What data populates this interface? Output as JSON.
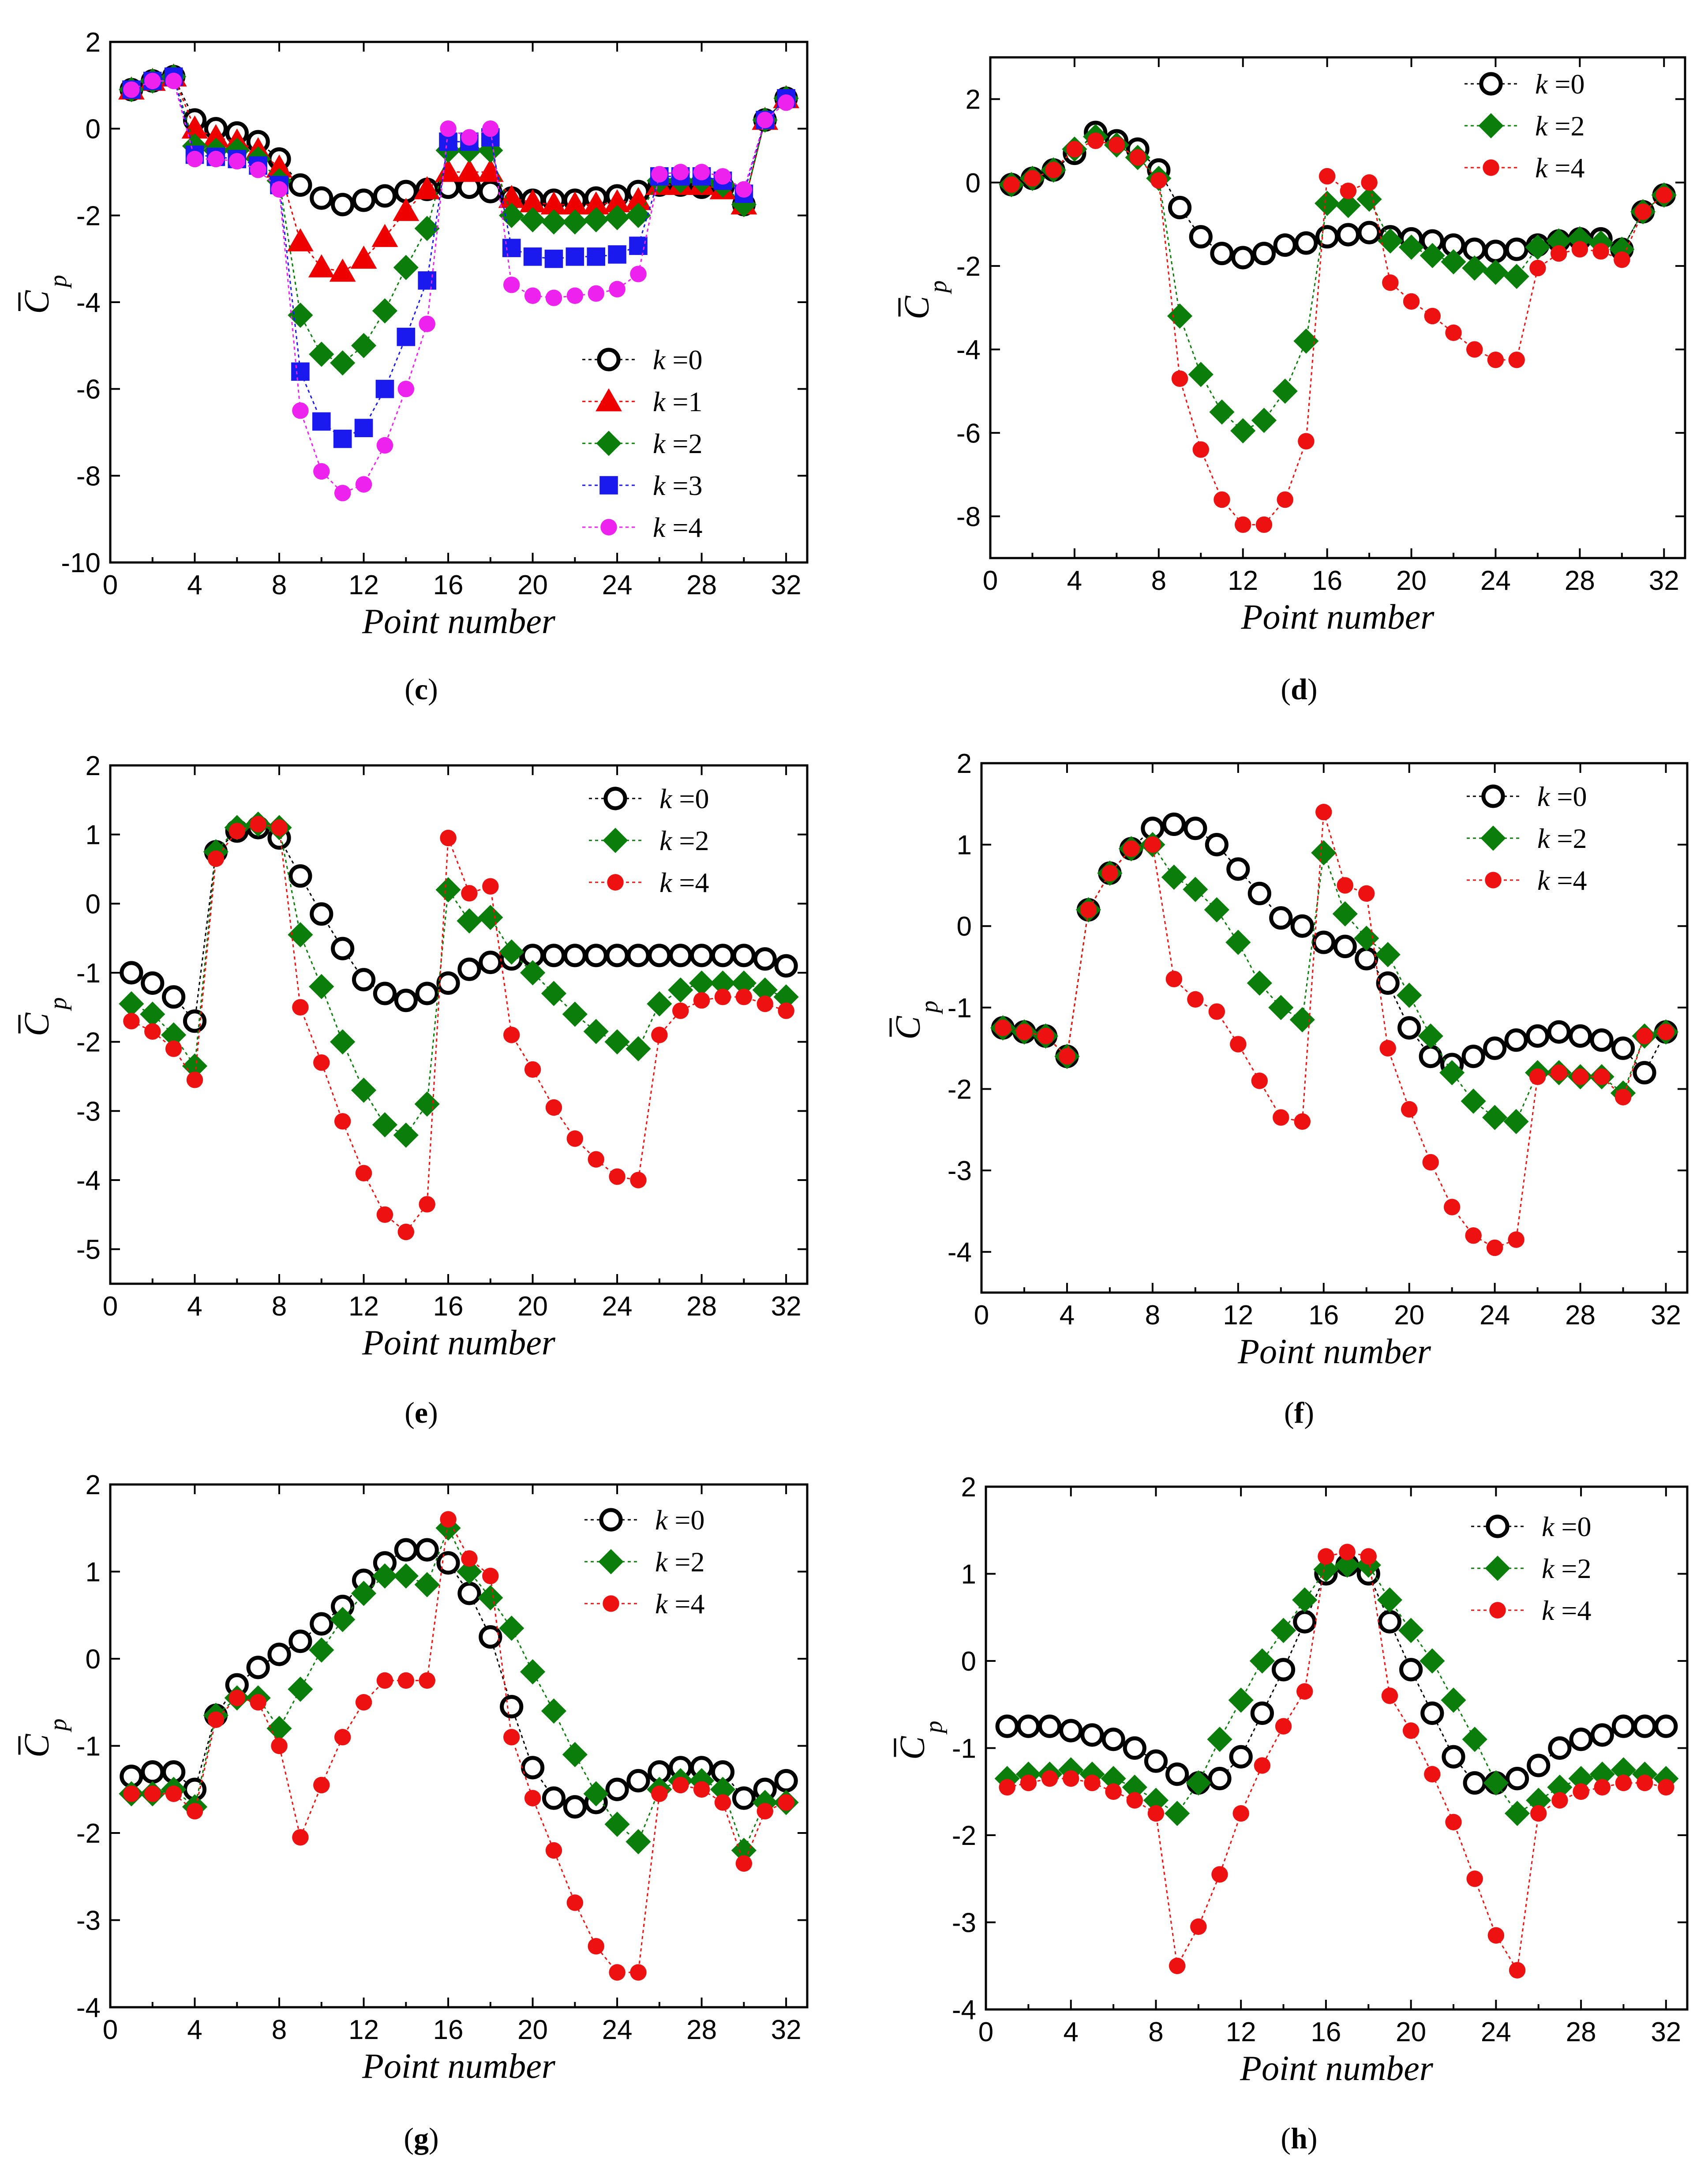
{
  "figure": {
    "xlabel": "Point number",
    "ylabel_main": "C",
    "ylabel_sub": "p",
    "legend_var": "k",
    "legend_eq": " =",
    "panel_open": "(",
    "panel_close": ")"
  },
  "styles": {
    "k0": {
      "color": "#000000",
      "marker": "circle-open"
    },
    "k1": {
      "color": "#ee0000",
      "marker": "triangle"
    },
    "k2": {
      "color": "#0a7d0a",
      "marker": "diamond"
    },
    "k3": {
      "color": "#1a1aee",
      "marker": "square"
    },
    "k4": {
      "color": "#ee1111",
      "marker": "circle",
      "k4_panel_c_color": "#ee22ee"
    }
  },
  "chart_data": [
    {
      "type": "scatter",
      "panel": "c",
      "title": "",
      "xlabel": "Point number",
      "ylabel": "C̄p",
      "xlim": [
        0,
        33
      ],
      "ylim": [
        -10,
        2
      ],
      "xticks": [
        0,
        4,
        8,
        12,
        16,
        20,
        24,
        28,
        32
      ],
      "yticks": [
        -10,
        -8,
        -6,
        -4,
        -2,
        0,
        2
      ],
      "legend_position": "bottom-right",
      "x": [
        1,
        2,
        3,
        4,
        5,
        6,
        7,
        8,
        9,
        10,
        11,
        12,
        13,
        14,
        15,
        16,
        17,
        18,
        19,
        20,
        21,
        22,
        23,
        24,
        25,
        26,
        27,
        28,
        29,
        30,
        31,
        32
      ],
      "series": [
        {
          "name": "k =0",
          "style": "k0",
          "values": [
            0.9,
            1.1,
            1.2,
            0.2,
            0.0,
            -0.1,
            -0.3,
            -0.7,
            -1.3,
            -1.6,
            -1.75,
            -1.65,
            -1.55,
            -1.45,
            -1.4,
            -1.35,
            -1.35,
            -1.45,
            -1.6,
            -1.65,
            -1.65,
            -1.65,
            -1.6,
            -1.55,
            -1.45,
            -1.3,
            -1.3,
            -1.35,
            -1.35,
            -1.75,
            0.2,
            0.7
          ]
        },
        {
          "name": "k =1",
          "style": "k1",
          "values": [
            0.9,
            1.1,
            1.2,
            0.0,
            -0.2,
            -0.3,
            -0.5,
            -0.9,
            -2.6,
            -3.2,
            -3.3,
            -3.0,
            -2.5,
            -1.9,
            -1.4,
            -1.0,
            -1.0,
            -1.0,
            -1.6,
            -1.7,
            -1.75,
            -1.75,
            -1.75,
            -1.7,
            -1.65,
            -1.3,
            -1.3,
            -1.3,
            -1.4,
            -1.75,
            0.2,
            0.7
          ]
        },
        {
          "name": "k =2",
          "style": "k2",
          "values": [
            0.9,
            1.1,
            1.2,
            -0.4,
            -0.5,
            -0.5,
            -0.7,
            -1.2,
            -4.3,
            -5.2,
            -5.4,
            -5.0,
            -4.2,
            -3.2,
            -2.3,
            -0.5,
            -0.5,
            -0.5,
            -2.0,
            -2.1,
            -2.15,
            -2.15,
            -2.1,
            -2.05,
            -2.0,
            -1.2,
            -1.2,
            -1.2,
            -1.3,
            -1.75,
            0.2,
            0.7
          ]
        },
        {
          "name": "k =3",
          "style": "k3",
          "values": [
            0.9,
            1.1,
            1.2,
            -0.6,
            -0.65,
            -0.7,
            -0.85,
            -1.3,
            -5.6,
            -6.75,
            -7.15,
            -6.9,
            -6.0,
            -4.8,
            -3.5,
            -0.3,
            -0.3,
            -0.2,
            -2.75,
            -2.95,
            -3.0,
            -2.95,
            -2.95,
            -2.9,
            -2.7,
            -1.1,
            -1.1,
            -1.1,
            -1.2,
            -1.5,
            0.2,
            0.7
          ]
        },
        {
          "name": "k =4",
          "style": "k4",
          "values": [
            0.9,
            1.1,
            1.1,
            -0.7,
            -0.7,
            -0.75,
            -0.95,
            -1.4,
            -6.5,
            -7.9,
            -8.4,
            -8.2,
            -7.3,
            -6.0,
            -4.5,
            0.0,
            -0.2,
            0.0,
            -3.6,
            -3.85,
            -3.9,
            -3.85,
            -3.8,
            -3.7,
            -3.35,
            -1.05,
            -1.0,
            -1.0,
            -1.1,
            -1.4,
            0.2,
            0.6
          ]
        }
      ]
    },
    {
      "type": "scatter",
      "panel": "d",
      "title": "",
      "xlabel": "Point number",
      "ylabel": "C̄p",
      "xlim": [
        0,
        33
      ],
      "ylim": [
        -9,
        3
      ],
      "xticks": [
        0,
        4,
        8,
        12,
        16,
        20,
        24,
        28,
        32
      ],
      "yticks": [
        -8,
        -6,
        -4,
        -2,
        0,
        2
      ],
      "legend_position": "top-right",
      "x": [
        1,
        2,
        3,
        4,
        5,
        6,
        7,
        8,
        9,
        10,
        11,
        12,
        13,
        14,
        15,
        16,
        17,
        18,
        19,
        20,
        21,
        22,
        23,
        24,
        25,
        26,
        27,
        28,
        29,
        30,
        31,
        32
      ],
      "series": [
        {
          "name": "k =0",
          "style": "k0",
          "values": [
            -0.05,
            0.1,
            0.3,
            0.7,
            1.2,
            1.0,
            0.8,
            0.3,
            -0.6,
            -1.3,
            -1.7,
            -1.8,
            -1.7,
            -1.5,
            -1.45,
            -1.3,
            -1.25,
            -1.2,
            -1.3,
            -1.35,
            -1.4,
            -1.5,
            -1.6,
            -1.65,
            -1.6,
            -1.5,
            -1.4,
            -1.35,
            -1.35,
            -1.6,
            -0.7,
            -0.3
          ]
        },
        {
          "name": "k =2",
          "style": "k2",
          "values": [
            -0.05,
            0.1,
            0.3,
            0.8,
            1.1,
            0.9,
            0.6,
            0.1,
            -3.2,
            -4.6,
            -5.5,
            -5.95,
            -5.7,
            -5.0,
            -3.8,
            -0.5,
            -0.55,
            -0.4,
            -1.4,
            -1.55,
            -1.75,
            -1.9,
            -2.05,
            -2.15,
            -2.25,
            -1.55,
            -1.4,
            -1.35,
            -1.45,
            -1.6,
            -0.7,
            -0.3
          ]
        },
        {
          "name": "k =4",
          "style": "k4",
          "values": [
            -0.05,
            0.1,
            0.3,
            0.8,
            1.0,
            0.9,
            0.6,
            0.05,
            -4.7,
            -6.4,
            -7.6,
            -8.2,
            -8.2,
            -7.6,
            -6.2,
            0.15,
            -0.2,
            0.0,
            -2.4,
            -2.85,
            -3.2,
            -3.6,
            -4.0,
            -4.25,
            -4.25,
            -2.05,
            -1.7,
            -1.6,
            -1.65,
            -1.85,
            -0.7,
            -0.3
          ]
        }
      ]
    },
    {
      "type": "scatter",
      "panel": "e",
      "title": "",
      "xlabel": "Point number",
      "ylabel": "C̄p",
      "xlim": [
        0,
        33
      ],
      "ylim": [
        -5.5,
        2
      ],
      "xticks": [
        0,
        4,
        8,
        12,
        16,
        20,
        24,
        28,
        32
      ],
      "yticks": [
        -5,
        -4,
        -3,
        -2,
        -1,
        0,
        1,
        2
      ],
      "legend_position": "top-right",
      "x": [
        1,
        2,
        3,
        4,
        5,
        6,
        7,
        8,
        9,
        10,
        11,
        12,
        13,
        14,
        15,
        16,
        17,
        18,
        19,
        20,
        21,
        22,
        23,
        24,
        25,
        26,
        27,
        28,
        29,
        30,
        31,
        32
      ],
      "series": [
        {
          "name": "k =0",
          "style": "k0",
          "values": [
            -1.0,
            -1.15,
            -1.35,
            -1.7,
            0.75,
            1.05,
            1.1,
            0.95,
            0.4,
            -0.15,
            -0.65,
            -1.1,
            -1.3,
            -1.4,
            -1.3,
            -1.15,
            -0.95,
            -0.85,
            -0.8,
            -0.75,
            -0.75,
            -0.75,
            -0.75,
            -0.75,
            -0.75,
            -0.75,
            -0.75,
            -0.75,
            -0.75,
            -0.75,
            -0.8,
            -0.9
          ]
        },
        {
          "name": "k =2",
          "style": "k2",
          "values": [
            -1.45,
            -1.6,
            -1.9,
            -2.35,
            0.75,
            1.1,
            1.15,
            1.1,
            -0.45,
            -1.2,
            -2.0,
            -2.7,
            -3.2,
            -3.35,
            -2.9,
            0.2,
            -0.25,
            -0.2,
            -0.7,
            -1.0,
            -1.3,
            -1.6,
            -1.85,
            -2.0,
            -2.1,
            -1.45,
            -1.25,
            -1.15,
            -1.15,
            -1.15,
            -1.25,
            -1.35
          ]
        },
        {
          "name": "k =4",
          "style": "k4",
          "values": [
            -1.7,
            -1.85,
            -2.1,
            -2.55,
            0.65,
            1.05,
            1.15,
            1.1,
            -1.5,
            -2.3,
            -3.15,
            -3.9,
            -4.5,
            -4.75,
            -4.35,
            0.95,
            0.15,
            0.25,
            -1.9,
            -2.4,
            -2.95,
            -3.4,
            -3.7,
            -3.95,
            -4.0,
            -1.9,
            -1.55,
            -1.4,
            -1.35,
            -1.35,
            -1.45,
            -1.55
          ]
        }
      ]
    },
    {
      "type": "scatter",
      "panel": "f",
      "title": "",
      "xlabel": "Point number",
      "ylabel": "C̄p",
      "xlim": [
        0,
        33
      ],
      "ylim": [
        -4.5,
        2
      ],
      "xticks": [
        0,
        4,
        8,
        12,
        16,
        20,
        24,
        28,
        32
      ],
      "yticks": [
        -4,
        -3,
        -2,
        -1,
        0,
        1,
        2
      ],
      "legend_position": "top-right",
      "x": [
        1,
        2,
        3,
        4,
        5,
        6,
        7,
        8,
        9,
        10,
        11,
        12,
        13,
        14,
        15,
        16,
        17,
        18,
        19,
        20,
        21,
        22,
        23,
        24,
        25,
        26,
        27,
        28,
        29,
        30,
        31,
        32
      ],
      "series": [
        {
          "name": "k =0",
          "style": "k0",
          "values": [
            -1.25,
            -1.3,
            -1.35,
            -1.6,
            0.2,
            0.65,
            0.95,
            1.2,
            1.25,
            1.2,
            1.0,
            0.7,
            0.4,
            0.1,
            0.0,
            -0.2,
            -0.25,
            -0.4,
            -0.7,
            -1.25,
            -1.6,
            -1.7,
            -1.6,
            -1.5,
            -1.4,
            -1.35,
            -1.3,
            -1.35,
            -1.4,
            -1.5,
            -1.8,
            -1.3
          ]
        },
        {
          "name": "k =2",
          "style": "k2",
          "values": [
            -1.25,
            -1.3,
            -1.35,
            -1.6,
            0.2,
            0.65,
            0.95,
            1.0,
            0.6,
            0.45,
            0.2,
            -0.2,
            -0.7,
            -1.0,
            -1.15,
            0.9,
            0.15,
            -0.15,
            -0.35,
            -0.85,
            -1.35,
            -1.8,
            -2.15,
            -2.35,
            -2.4,
            -1.8,
            -1.8,
            -1.85,
            -1.85,
            -2.05,
            -1.35,
            -1.3
          ]
        },
        {
          "name": "k =4",
          "style": "k4",
          "values": [
            -1.25,
            -1.3,
            -1.35,
            -1.6,
            0.2,
            0.65,
            0.95,
            1.0,
            -0.65,
            -0.9,
            -1.05,
            -1.45,
            -1.9,
            -2.35,
            -2.4,
            1.4,
            0.5,
            0.4,
            -1.5,
            -2.25,
            -2.9,
            -3.45,
            -3.8,
            -3.95,
            -3.85,
            -1.85,
            -1.8,
            -1.85,
            -1.85,
            -2.1,
            -1.35,
            -1.3
          ]
        }
      ]
    },
    {
      "type": "scatter",
      "panel": "g",
      "title": "",
      "xlabel": "Point number",
      "ylabel": "C̄p",
      "xlim": [
        0,
        33
      ],
      "ylim": [
        -4,
        2
      ],
      "xticks": [
        0,
        4,
        8,
        12,
        16,
        20,
        24,
        28,
        32
      ],
      "yticks": [
        -4,
        -3,
        -2,
        -1,
        0,
        1,
        2
      ],
      "legend_position": "top-right",
      "x": [
        1,
        2,
        3,
        4,
        5,
        6,
        7,
        8,
        9,
        10,
        11,
        12,
        13,
        14,
        15,
        16,
        17,
        18,
        19,
        20,
        21,
        22,
        23,
        24,
        25,
        26,
        27,
        28,
        29,
        30,
        31,
        32
      ],
      "series": [
        {
          "name": "k =0",
          "style": "k0",
          "values": [
            -1.35,
            -1.3,
            -1.3,
            -1.5,
            -0.65,
            -0.3,
            -0.1,
            0.05,
            0.2,
            0.4,
            0.6,
            0.9,
            1.1,
            1.25,
            1.25,
            1.1,
            0.75,
            0.25,
            -0.55,
            -1.25,
            -1.6,
            -1.7,
            -1.65,
            -1.5,
            -1.4,
            -1.3,
            -1.25,
            -1.25,
            -1.3,
            -1.6,
            -1.5,
            -1.4
          ]
        },
        {
          "name": "k =2",
          "style": "k2",
          "values": [
            -1.55,
            -1.55,
            -1.5,
            -1.7,
            -0.65,
            -0.45,
            -0.45,
            -0.8,
            -0.35,
            0.1,
            0.45,
            0.75,
            0.95,
            0.95,
            0.85,
            1.5,
            1.0,
            0.7,
            0.35,
            -0.15,
            -0.6,
            -1.1,
            -1.55,
            -1.9,
            -2.1,
            -1.5,
            -1.4,
            -1.4,
            -1.5,
            -2.2,
            -1.65,
            -1.65
          ]
        },
        {
          "name": "k =4",
          "style": "k4",
          "values": [
            -1.55,
            -1.55,
            -1.55,
            -1.75,
            -0.7,
            -0.45,
            -0.5,
            -1.0,
            -2.05,
            -1.45,
            -0.9,
            -0.5,
            -0.25,
            -0.25,
            -0.25,
            1.6,
            1.15,
            0.95,
            -0.9,
            -1.6,
            -2.2,
            -2.8,
            -3.3,
            -3.6,
            -3.6,
            -1.55,
            -1.45,
            -1.5,
            -1.65,
            -2.35,
            -1.75,
            -1.65
          ]
        }
      ]
    },
    {
      "type": "scatter",
      "panel": "h",
      "title": "",
      "xlabel": "Point number",
      "ylabel": "C̄p",
      "xlim": [
        0,
        33
      ],
      "ylim": [
        -4,
        2
      ],
      "xticks": [
        0,
        4,
        8,
        12,
        16,
        20,
        24,
        28,
        32
      ],
      "yticks": [
        -4,
        -3,
        -2,
        -1,
        0,
        1,
        2
      ],
      "legend_position": "top-right",
      "x": [
        1,
        2,
        3,
        4,
        5,
        6,
        7,
        8,
        9,
        10,
        11,
        12,
        13,
        14,
        15,
        16,
        17,
        18,
        19,
        20,
        21,
        22,
        23,
        24,
        25,
        26,
        27,
        28,
        29,
        30,
        31,
        32
      ],
      "series": [
        {
          "name": "k =0",
          "style": "k0",
          "values": [
            -0.75,
            -0.75,
            -0.75,
            -0.8,
            -0.85,
            -0.9,
            -1.0,
            -1.15,
            -1.3,
            -1.4,
            -1.35,
            -1.1,
            -0.6,
            -0.1,
            0.45,
            1.0,
            1.1,
            1.0,
            0.45,
            -0.1,
            -0.6,
            -1.1,
            -1.4,
            -1.4,
            -1.35,
            -1.2,
            -1.0,
            -0.9,
            -0.85,
            -0.75,
            -0.75,
            -0.75
          ]
        },
        {
          "name": "k =2",
          "style": "k2",
          "values": [
            -1.35,
            -1.3,
            -1.3,
            -1.25,
            -1.3,
            -1.35,
            -1.45,
            -1.6,
            -1.75,
            -1.4,
            -0.9,
            -0.45,
            0.0,
            0.35,
            0.7,
            1.05,
            1.1,
            1.1,
            0.7,
            0.35,
            0.0,
            -0.45,
            -0.9,
            -1.4,
            -1.75,
            -1.6,
            -1.45,
            -1.35,
            -1.3,
            -1.25,
            -1.3,
            -1.35
          ]
        },
        {
          "name": "k =4",
          "style": "k4",
          "values": [
            -1.45,
            -1.4,
            -1.35,
            -1.35,
            -1.4,
            -1.5,
            -1.6,
            -1.75,
            -3.5,
            -3.05,
            -2.45,
            -1.75,
            -1.2,
            -0.75,
            -0.35,
            1.2,
            1.25,
            1.2,
            -0.4,
            -0.8,
            -1.3,
            -1.85,
            -2.5,
            -3.15,
            -3.55,
            -1.75,
            -1.6,
            -1.5,
            -1.45,
            -1.4,
            -1.4,
            -1.45
          ]
        }
      ]
    }
  ]
}
